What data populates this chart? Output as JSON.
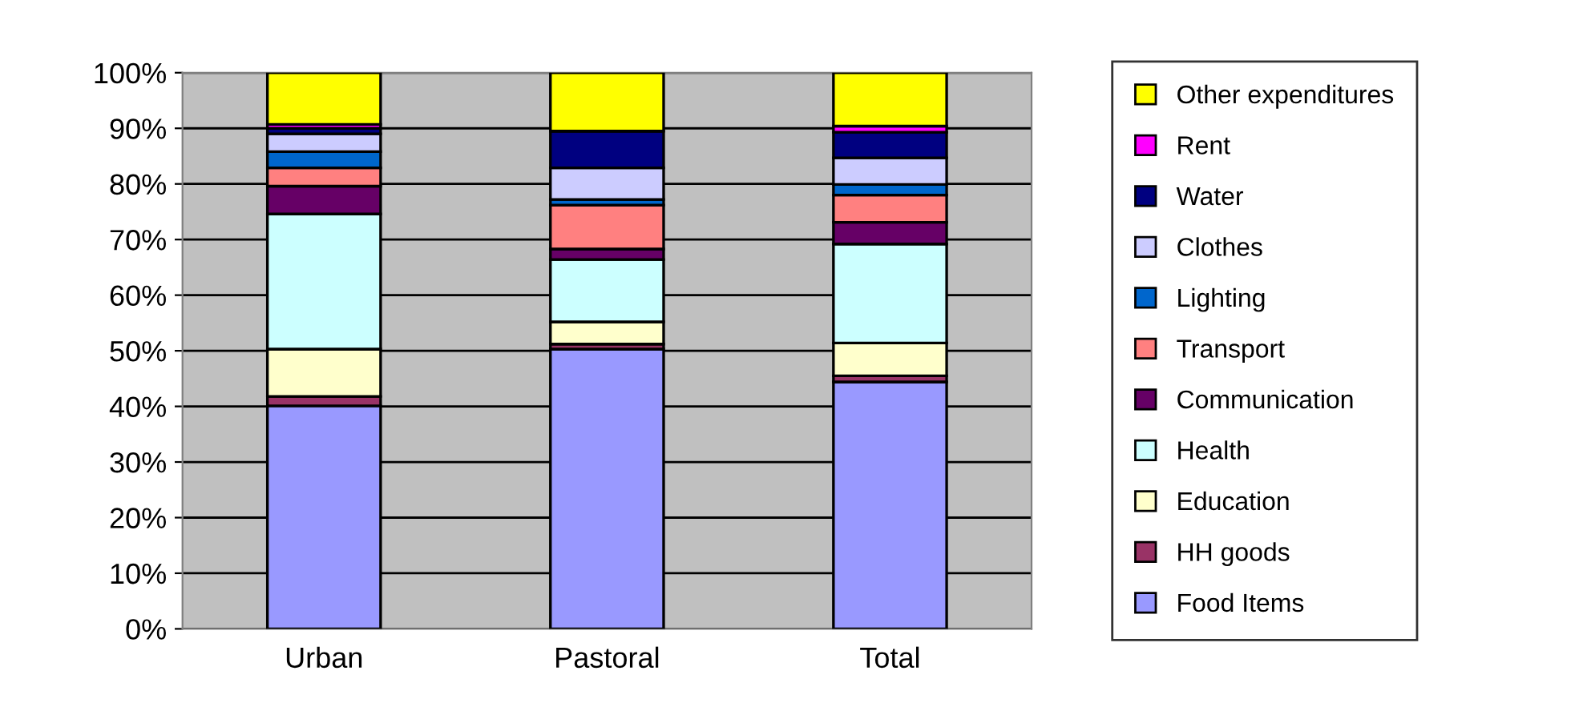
{
  "chart_data": {
    "type": "bar",
    "stacked": true,
    "categories": [
      "Urban",
      "Pastoral",
      "Total"
    ],
    "series": [
      {
        "name": "Food Items",
        "color": "#9999ff",
        "values": [
          40.1,
          50.3,
          44.4
        ]
      },
      {
        "name": "HH goods",
        "color": "#993366",
        "values": [
          1.7,
          0.9,
          1.1
        ]
      },
      {
        "name": "Education",
        "color": "#ffffcc",
        "values": [
          8.5,
          4.0,
          5.9
        ]
      },
      {
        "name": "Health",
        "color": "#ccffff",
        "values": [
          24.3,
          11.2,
          17.8
        ]
      },
      {
        "name": "Communication",
        "color": "#660066",
        "values": [
          5.0,
          1.9,
          3.9
        ]
      },
      {
        "name": "Transport",
        "color": "#ff8080",
        "values": [
          3.3,
          7.9,
          4.9
        ]
      },
      {
        "name": "Lighting",
        "color": "#0066cc",
        "values": [
          2.9,
          1.0,
          1.9
        ]
      },
      {
        "name": "Clothes",
        "color": "#ccccff",
        "values": [
          3.2,
          5.7,
          4.8
        ]
      },
      {
        "name": "Water",
        "color": "#000080",
        "values": [
          1.0,
          6.6,
          4.6
        ]
      },
      {
        "name": "Rent",
        "color": "#ff00ff",
        "values": [
          0.7,
          0,
          1.1
        ]
      },
      {
        "name": "Other expenditures",
        "color": "#ffff00",
        "values": [
          9.3,
          10.5,
          9.6
        ]
      }
    ],
    "ylim": [
      0,
      100
    ],
    "yticks": [
      {
        "value": 0,
        "label": "0%"
      },
      {
        "value": 10,
        "label": "10%"
      },
      {
        "value": 20,
        "label": "20%"
      },
      {
        "value": 30,
        "label": "30%"
      },
      {
        "value": 40,
        "label": "40%"
      },
      {
        "value": 50,
        "label": "50%"
      },
      {
        "value": 60,
        "label": "60%"
      },
      {
        "value": 70,
        "label": "70%"
      },
      {
        "value": 80,
        "label": "80%"
      },
      {
        "value": 90,
        "label": "90%"
      },
      {
        "value": 100,
        "label": "100%"
      }
    ],
    "grid": "y",
    "legend": "right"
  }
}
